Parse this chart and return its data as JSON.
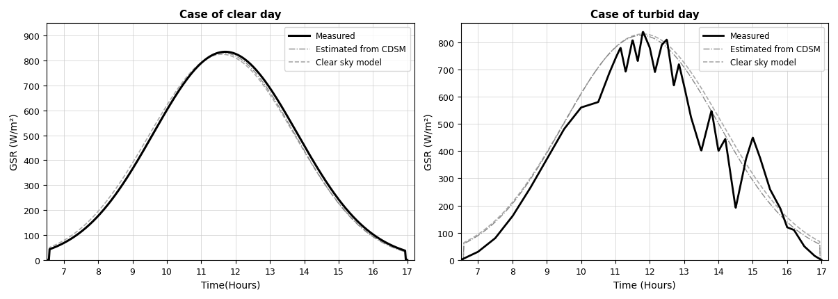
{
  "title1": "Case of clear day",
  "title2": "Case of turbid day",
  "xlabel1": "Time(Hours)",
  "xlabel2": "Time (Hours)",
  "ylabel": "GSR (W/m²)",
  "xlim": [
    6.5,
    17.2
  ],
  "ylim1": [
    0,
    950
  ],
  "ylim2": [
    0,
    870
  ],
  "yticks1": [
    0,
    100,
    200,
    300,
    400,
    500,
    600,
    700,
    800,
    900
  ],
  "yticks2": [
    0,
    100,
    200,
    300,
    400,
    500,
    600,
    700,
    800
  ],
  "xticks": [
    7,
    8,
    9,
    10,
    11,
    12,
    13,
    14,
    15,
    16,
    17
  ],
  "legend_labels": [
    "Measured",
    "Estimated from CDSM",
    "Clear sky model"
  ],
  "line_measured_color": "#000000",
  "line_cdsm_color": "#888888",
  "line_csm_color": "#aaaaaa",
  "background_color": "#ffffff",
  "turb_t": [
    6.5,
    6.58,
    7.0,
    7.5,
    8.0,
    8.5,
    9.0,
    9.5,
    10.0,
    10.5,
    10.8,
    11.0,
    11.15,
    11.3,
    11.5,
    11.65,
    11.8,
    12.0,
    12.15,
    12.35,
    12.5,
    12.7,
    12.85,
    13.0,
    13.2,
    13.5,
    13.8,
    14.0,
    14.2,
    14.5,
    14.8,
    15.0,
    15.2,
    15.5,
    15.8,
    16.0,
    16.2,
    16.5,
    16.8,
    17.0
  ],
  "turb_v": [
    0,
    5,
    30,
    80,
    160,
    260,
    370,
    480,
    560,
    580,
    680,
    740,
    780,
    690,
    810,
    730,
    840,
    780,
    690,
    790,
    810,
    640,
    720,
    640,
    525,
    400,
    550,
    400,
    445,
    190,
    370,
    450,
    380,
    260,
    190,
    120,
    110,
    50,
    15,
    0
  ]
}
